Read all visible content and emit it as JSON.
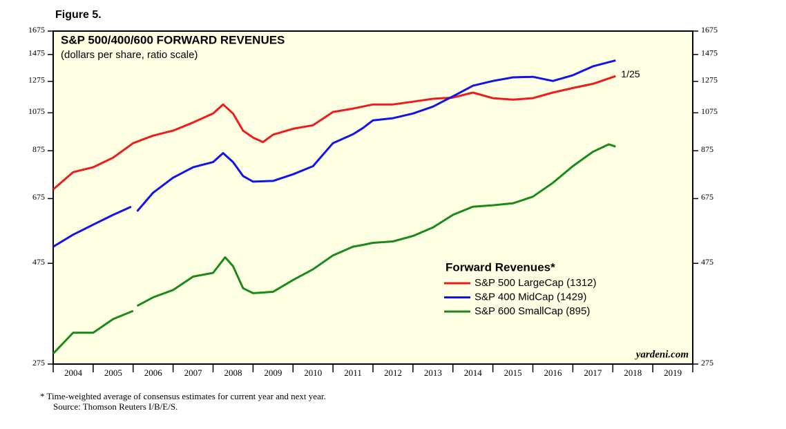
{
  "chart_data": {
    "type": "line",
    "figure_label": "Figure 5.",
    "title": "S&P 500/400/600 FORWARD REVENUES",
    "subtitle": "(dollars per share, ratio scale)",
    "log_scale": true,
    "ylim": [
      275,
      1675
    ],
    "yticks": [
      275,
      475,
      675,
      875,
      1075,
      1275,
      1475,
      1675
    ],
    "xlim": [
      2004,
      2020
    ],
    "xticks": [
      2004,
      2005,
      2006,
      2007,
      2008,
      2009,
      2010,
      2011,
      2012,
      2013,
      2014,
      2015,
      2016,
      2017,
      2018,
      2019
    ],
    "legend_title": "Forward Revenues*",
    "legend_position": "lower right",
    "annotation": "1/25",
    "watermark": "yardeni.com",
    "footnotes": [
      "*  Time-weighted average of consensus estimates for current year and next year.",
      "Source: Thomson Reuters I/B/E/S."
    ],
    "background": "#ffffe3",
    "series": [
      {
        "name": "S&P 500 LargeCap (1312)",
        "color": "#ee1c1c",
        "x": [
          2004,
          2004.5,
          2005,
          2005.5,
          2006,
          2006.5,
          2007,
          2007.5,
          2008,
          2008.25,
          2008.5,
          2008.75,
          2009,
          2009.25,
          2009.5,
          2010,
          2010.5,
          2011,
          2011.5,
          2012,
          2012.5,
          2013,
          2013.5,
          2014,
          2014.5,
          2015,
          2015.5,
          2016,
          2016.5,
          2017,
          2017.5,
          2018.07
        ],
        "values": [
          709,
          779,
          800,
          843,
          912,
          950,
          976,
          1020,
          1071,
          1125,
          1071,
          976,
          940,
          917,
          955,
          986,
          1005,
          1080,
          1100,
          1125,
          1125,
          1142,
          1160,
          1168,
          1200,
          1164,
          1155,
          1164,
          1200,
          1230,
          1258,
          1312
        ]
      },
      {
        "name": "S&P 400 MidCap (1429)",
        "color": "#1212f0",
        "x": [
          2004,
          2004.5,
          2005,
          2005.5,
          2005.95,
          2006,
          2006.1,
          2006.5,
          2007,
          2007.5,
          2008,
          2008.25,
          2008.5,
          2008.75,
          2009,
          2009.5,
          2010,
          2010.5,
          2011,
          2011.5,
          2011.75,
          2012,
          2012.5,
          2013,
          2013.5,
          2014,
          2014.5,
          2015,
          2015.5,
          2016,
          2016.5,
          2017,
          2017.5,
          2018.07
        ],
        "values": [
          520,
          555,
          586,
          618,
          646,
          null,
          630,
          697,
          756,
          800,
          823,
          864,
          823,
          763,
          740,
          743,
          770,
          805,
          912,
          957,
          990,
          1032,
          1044,
          1071,
          1112,
          1176,
          1245,
          1278,
          1303,
          1307,
          1278,
          1318,
          1383,
          1429
        ]
      },
      {
        "name": "S&P 600 SmallCap (895)",
        "color": "#1a8a1a",
        "x": [
          2004,
          2004.5,
          2005,
          2005.5,
          2006,
          2006.05,
          2006.1,
          2006.5,
          2007,
          2007.5,
          2008,
          2008.3,
          2008.5,
          2008.75,
          2009,
          2009.5,
          2010,
          2010.5,
          2011,
          2011.5,
          2011.75,
          2012,
          2012.5,
          2013,
          2013.5,
          2014,
          2014.5,
          2015,
          2015.5,
          2016,
          2016.5,
          2017,
          2017.5,
          2017.9,
          2018.07
        ],
        "values": [
          291,
          326,
          326,
          351,
          367,
          null,
          377,
          395,
          411,
          442,
          451,
          491,
          468,
          415,
          404,
          407,
          434,
          460,
          496,
          520,
          525,
          531,
          535,
          551,
          577,
          618,
          646,
          651,
          658,
          682,
          735,
          805,
          870,
          906,
          895
        ]
      }
    ]
  }
}
